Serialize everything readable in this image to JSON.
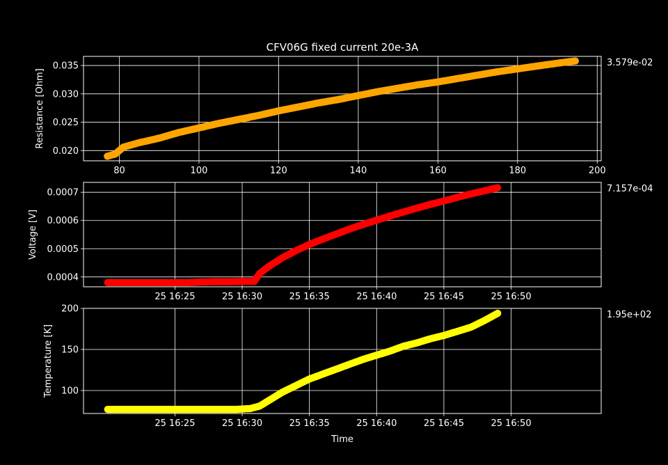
{
  "figure_title": "CFV06G fixed current 20e-3A",
  "colors": {
    "background": "#000000",
    "axes": "#ffffff",
    "grid": "#ffffff",
    "resistance": "#ffa500",
    "voltage": "#ff0000",
    "temperature": "#ffff00"
  },
  "chart_data": [
    {
      "type": "scatter",
      "title": "CFV06G fixed current 20e-3A",
      "xlabel": "",
      "ylabel": "Resistance [Ohm]",
      "xlim": [
        71,
        201
      ],
      "ylim": [
        0.0182,
        0.0366
      ],
      "xticks": [
        80,
        100,
        120,
        140,
        160,
        180,
        200
      ],
      "xtick_labels": [
        "80",
        "100",
        "120",
        "140",
        "160",
        "180",
        "200"
      ],
      "yticks": [
        0.02,
        0.025,
        0.03,
        0.035
      ],
      "ytick_labels": [
        "0.020",
        "0.025",
        "0.030",
        "0.035"
      ],
      "last_value_label": "3.579e-02",
      "grid": true,
      "series": [
        {
          "color": "#ffa500",
          "x": [
            77,
            78,
            79,
            80,
            81,
            83,
            85,
            87,
            90,
            95,
            100,
            105,
            110,
            115,
            120,
            125,
            130,
            135,
            140,
            145,
            150,
            155,
            160,
            165,
            170,
            175,
            180,
            185,
            190,
            194.5
          ],
          "y": [
            0.019,
            0.0192,
            0.0194,
            0.02,
            0.0206,
            0.021,
            0.0214,
            0.0217,
            0.0222,
            0.0232,
            0.024,
            0.0248,
            0.0255,
            0.0262,
            0.027,
            0.0277,
            0.0284,
            0.029,
            0.0297,
            0.0304,
            0.031,
            0.0316,
            0.0321,
            0.0327,
            0.0333,
            0.0339,
            0.0344,
            0.0349,
            0.0354,
            0.0358
          ]
        }
      ]
    },
    {
      "type": "scatter",
      "xlabel": "",
      "ylabel": "Voltage [V]",
      "xlim": [
        -8.8,
        29.7
      ],
      "ylim": [
        0.000365,
        0.000735
      ],
      "xticks": [
        0,
        5,
        10,
        15,
        20,
        25,
        30
      ],
      "xtick_labels": [
        "25 16:25",
        "25 16:30",
        "25 16:35",
        "25 16:40",
        "25 16:45",
        "25 16:50"
      ],
      "xtick_values": [
        -2,
        3,
        8,
        13,
        18,
        23
      ],
      "yticks": [
        0.0004,
        0.0005,
        0.0006,
        0.0007
      ],
      "ytick_labels": [
        "0.0004",
        "0.0005",
        "0.0006",
        "0.0007"
      ],
      "last_value_label": "7.157e-04",
      "grid": true,
      "series": [
        {
          "color": "#ff0000",
          "x": [
            -7,
            -5,
            -3,
            -1,
            0,
            1,
            2,
            3,
            3.6,
            3.9,
            4.3,
            5,
            6,
            7,
            8,
            9,
            10,
            11,
            12,
            13,
            14,
            15,
            16,
            17,
            18,
            19,
            20,
            21,
            22
          ],
          "y": [
            0.00038,
            0.00038,
            0.00038,
            0.00038,
            0.000382,
            0.000383,
            0.000383,
            0.000384,
            0.000384,
            0.000384,
            0.000412,
            0.000438,
            0.000468,
            0.000493,
            0.000515,
            0.000534,
            0.000552,
            0.00057,
            0.000586,
            0.000601,
            0.000616,
            0.00063,
            0.000644,
            0.000657,
            0.000669,
            0.000682,
            0.000694,
            0.000705,
            0.000716
          ]
        }
      ]
    },
    {
      "type": "scatter",
      "xlabel": "Time",
      "ylabel": "Temperature [K]",
      "xlim": [
        -8.8,
        29.7
      ],
      "ylim": [
        72,
        200
      ],
      "xtick_labels": [
        "25 16:25",
        "25 16:30",
        "25 16:35",
        "25 16:40",
        "25 16:45",
        "25 16:50"
      ],
      "xtick_values": [
        -2,
        3,
        8,
        13,
        18,
        23
      ],
      "yticks": [
        100,
        150,
        200
      ],
      "ytick_labels": [
        "100",
        "150",
        "200"
      ],
      "last_value_label": "1.95e+02",
      "grid": true,
      "series": [
        {
          "color": "#ffff00",
          "x": [
            -7,
            -5,
            -3,
            -1,
            1,
            2.5,
            3.6,
            4.3,
            5,
            6,
            7,
            8,
            9,
            10,
            11,
            12,
            13,
            14,
            15,
            16,
            17,
            18,
            19,
            20,
            21,
            22
          ],
          "y": [
            77,
            77,
            77,
            77,
            77,
            77,
            78,
            81,
            88,
            98,
            106,
            114,
            120,
            126,
            132,
            138,
            143,
            148,
            154,
            158,
            163,
            167,
            172,
            177,
            185,
            194
          ]
        }
      ]
    }
  ]
}
